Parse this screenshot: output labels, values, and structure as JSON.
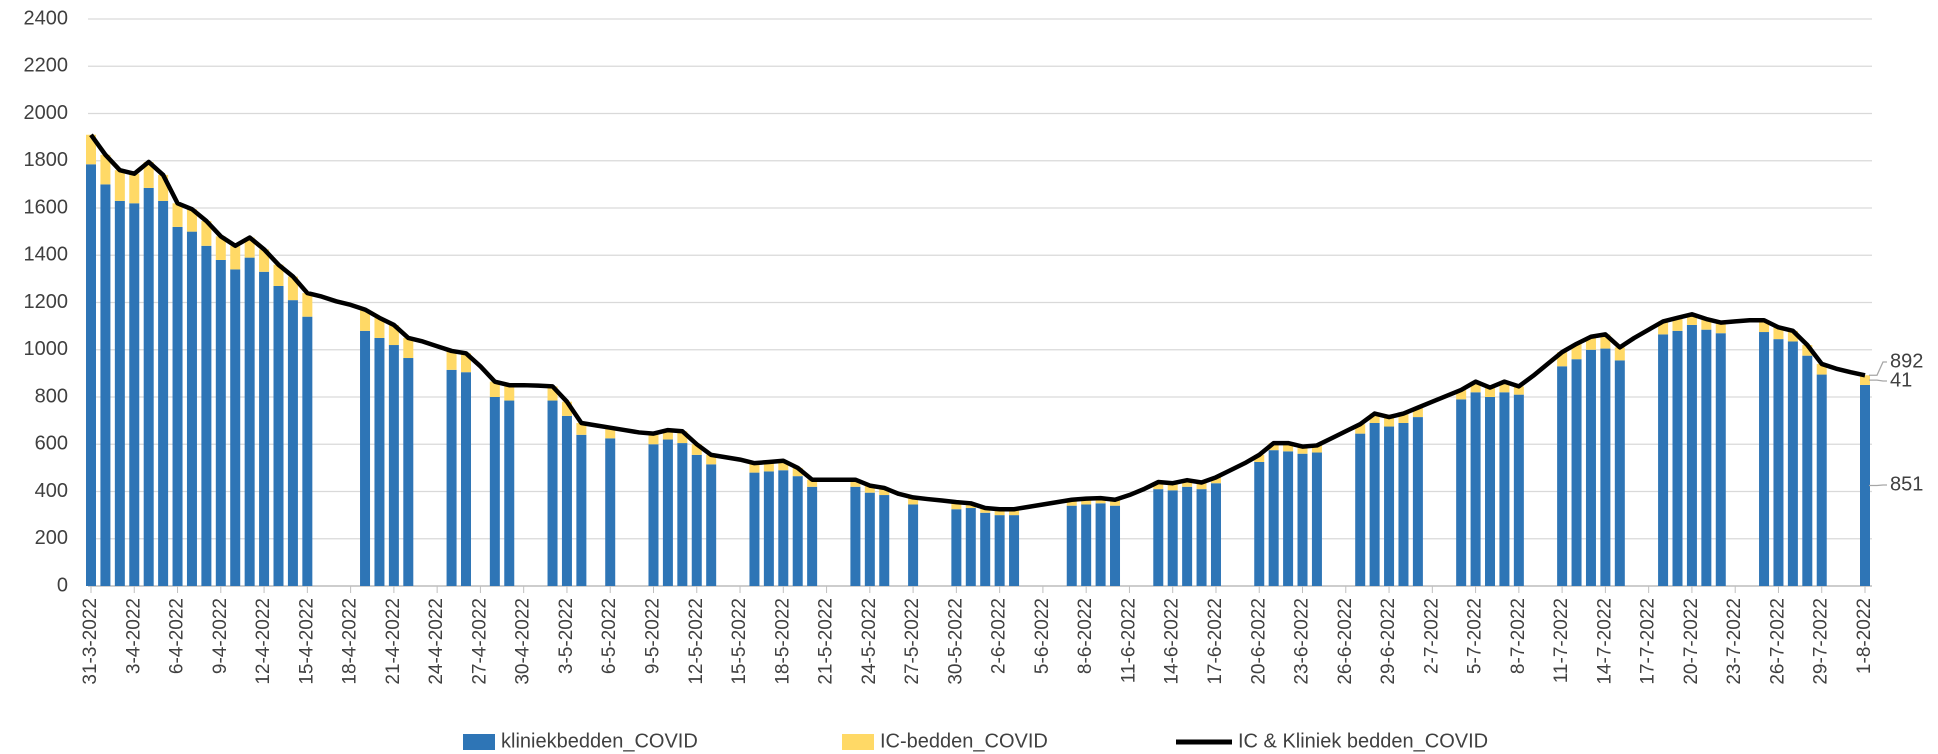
{
  "chart_data": {
    "type": "bar",
    "categories": [
      "31-3-2022",
      null,
      null,
      "3-4-2022",
      null,
      null,
      "6-4-2022",
      null,
      null,
      "9-4-2022",
      null,
      null,
      "12-4-2022",
      null,
      null,
      "15-4-2022",
      null,
      null,
      "18-4-2022",
      null,
      null,
      "21-4-2022",
      null,
      null,
      "24-4-2022",
      null,
      null,
      "27-4-2022",
      null,
      null,
      "30-4-2022",
      null,
      null,
      "3-5-2022",
      null,
      null,
      "6-5-2022",
      null,
      null,
      "9-5-2022",
      null,
      null,
      "12-5-2022",
      null,
      null,
      "15-5-2022",
      null,
      null,
      "18-5-2022",
      null,
      null,
      "21-5-2022",
      null,
      null,
      "24-5-2022",
      null,
      null,
      "27-5-2022",
      null,
      null,
      "30-5-2022",
      null,
      null,
      "2-6-2022",
      null,
      null,
      "5-6-2022",
      null,
      null,
      "8-6-2022",
      null,
      null,
      "11-6-2022",
      null,
      null,
      "14-6-2022",
      null,
      null,
      "17-6-2022",
      null,
      null,
      "20-6-2022",
      null,
      null,
      "23-6-2022",
      null,
      null,
      "26-6-2022",
      null,
      null,
      "29-6-2022",
      null,
      null,
      "2-7-2022",
      null,
      null,
      "5-7-2022",
      null,
      null,
      "8-7-2022",
      null,
      null,
      "11-7-2022",
      null,
      null,
      "14-7-2022",
      null,
      null,
      "17-7-2022",
      null,
      null,
      "20-7-2022",
      null,
      null,
      "23-7-2022",
      null,
      null,
      "26-7-2022",
      null,
      null,
      "29-7-2022",
      null,
      null,
      "1-8-2022"
    ],
    "series": [
      {
        "name": "kliniekbedden_COVID",
        "color": "#2e75b6",
        "stack": true,
        "values": [
          1785,
          1700,
          1630,
          1620,
          1685,
          1630,
          1520,
          1500,
          1440,
          1380,
          1340,
          1390,
          1330,
          1270,
          1210,
          1140,
          null,
          null,
          null,
          1080,
          1050,
          1020,
          965,
          null,
          null,
          915,
          905,
          null,
          800,
          785,
          null,
          null,
          785,
          720,
          640,
          null,
          625,
          null,
          null,
          600,
          620,
          605,
          555,
          515,
          null,
          null,
          480,
          485,
          490,
          465,
          420,
          null,
          null,
          420,
          395,
          385,
          null,
          345,
          null,
          null,
          325,
          330,
          310,
          300,
          300,
          null,
          null,
          null,
          340,
          345,
          350,
          340,
          null,
          null,
          410,
          405,
          420,
          410,
          435,
          null,
          null,
          525,
          575,
          570,
          560,
          565,
          null,
          null,
          645,
          690,
          675,
          690,
          715,
          null,
          null,
          790,
          820,
          800,
          820,
          810,
          null,
          null,
          930,
          960,
          1000,
          1005,
          955,
          null,
          null,
          1065,
          1080,
          1105,
          1085,
          1070,
          null,
          null,
          1075,
          1045,
          1035,
          975,
          895,
          null,
          null,
          851
        ]
      },
      {
        "name": "IC-bedden_COVID",
        "color": "#ffd966",
        "stack": true,
        "values": [
          125,
          125,
          130,
          125,
          110,
          110,
          100,
          95,
          105,
          100,
          100,
          85,
          95,
          90,
          100,
          100,
          null,
          null,
          null,
          90,
          85,
          85,
          85,
          null,
          null,
          80,
          80,
          null,
          65,
          65,
          null,
          null,
          60,
          60,
          50,
          null,
          45,
          null,
          null,
          45,
          40,
          50,
          45,
          40,
          null,
          null,
          40,
          40,
          40,
          35,
          30,
          null,
          null,
          30,
          30,
          30,
          null,
          30,
          null,
          null,
          30,
          20,
          20,
          25,
          25,
          null,
          null,
          null,
          25,
          25,
          22,
          25,
          null,
          null,
          30,
          30,
          28,
          28,
          25,
          null,
          null,
          30,
          30,
          35,
          30,
          30,
          null,
          null,
          40,
          40,
          40,
          40,
          40,
          null,
          null,
          40,
          45,
          40,
          45,
          35,
          null,
          null,
          60,
          65,
          55,
          60,
          55,
          null,
          null,
          55,
          55,
          45,
          45,
          45,
          null,
          null,
          50,
          50,
          45,
          45,
          45,
          null,
          null,
          41
        ]
      },
      {
        "name": "IC & Kliniek bedden_COVID",
        "color": "#000000",
        "kind": "line",
        "values": [
          1910,
          1825,
          1760,
          1745,
          1795,
          1740,
          1620,
          1595,
          1545,
          1480,
          1440,
          1475,
          1425,
          1360,
          1310,
          1240,
          1225,
          1205,
          1190,
          1170,
          1135,
          1105,
          1050,
          1035,
          1015,
          995,
          985,
          930,
          865,
          850,
          850,
          848,
          845,
          780,
          690,
          680,
          670,
          660,
          650,
          645,
          660,
          655,
          600,
          555,
          545,
          535,
          520,
          525,
          530,
          500,
          450,
          450,
          450,
          450,
          425,
          415,
          390,
          375,
          368,
          362,
          355,
          350,
          330,
          325,
          325,
          335,
          345,
          355,
          365,
          370,
          372,
          365,
          385,
          410,
          440,
          435,
          448,
          438,
          460,
          490,
          520,
          555,
          605,
          605,
          590,
          595,
          625,
          655,
          685,
          730,
          715,
          730,
          755,
          780,
          805,
          830,
          865,
          840,
          865,
          845,
          890,
          940,
          990,
          1025,
          1055,
          1065,
          1010,
          1050,
          1085,
          1120,
          1135,
          1150,
          1130,
          1115,
          1120,
          1125,
          1125,
          1095,
          1080,
          1020,
          940,
          920,
          905,
          892
        ]
      }
    ],
    "ylim": [
      0,
      2400
    ],
    "yticks": [
      0,
      200,
      400,
      600,
      800,
      1000,
      1200,
      1400,
      1600,
      1800,
      2000,
      2200,
      2400
    ],
    "grid": true,
    "legend": "bottom",
    "last_point_labels": true
  }
}
